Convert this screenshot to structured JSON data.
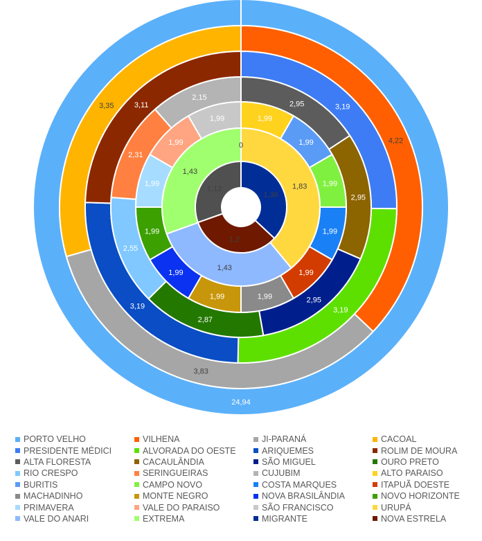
{
  "chart_data": {
    "type": "doughnut",
    "title": "",
    "rings": [
      {
        "segments": [
          {
            "name": "PORTO VELHO",
            "value": 24.94,
            "label": "24,94",
            "color": "#5BB0FA",
            "label_color": "#ffffff"
          }
        ]
      },
      {
        "segments": [
          {
            "name": "VILHENA",
            "value": 4.22,
            "label": "4,22",
            "color": "#FF5F00",
            "label_color": "#404040"
          },
          {
            "name": "JI-PARANÁ",
            "value": 3.83,
            "label": "3,83",
            "color": "#A6A6A6",
            "label_color": "#404040"
          },
          {
            "name": "CACOAL",
            "value": 3.35,
            "label": "3,35",
            "color": "#FFB400",
            "label_color": "#404040"
          }
        ]
      },
      {
        "segments": [
          {
            "name": "PRESIDENTE MÉDICI",
            "value": 3.19,
            "label": "3,19",
            "color": "#3D7CF5",
            "label_color": "#ffffff"
          },
          {
            "name": "ALVORADA DO OESTE",
            "value": 3.19,
            "label": "3,19",
            "color": "#5DE000",
            "label_color": "#ffffff"
          },
          {
            "name": "ARIQUEMES",
            "value": 3.19,
            "label": "3,19",
            "color": "#0A4DC4",
            "label_color": "#ffffff"
          },
          {
            "name": "ROLIM DE MOURA",
            "value": 3.11,
            "label": "3,11",
            "color": "#8C2800",
            "label_color": "#ffffff"
          }
        ]
      },
      {
        "segments": [
          {
            "name": "ALTA FLORESTA",
            "value": 2.95,
            "label": "2,95",
            "color": "#5C5C5C",
            "label_color": "#ffffff"
          },
          {
            "name": "CACAULÂNDIA",
            "value": 2.95,
            "label": "2,95",
            "color": "#8C6400",
            "label_color": "#ffffff"
          },
          {
            "name": "SÃO MIGUEL",
            "value": 2.95,
            "label": "2,95",
            "color": "#001F8C",
            "label_color": "#ffffff"
          },
          {
            "name": "OURO PRETO",
            "value": 2.87,
            "label": "2,87",
            "color": "#237800",
            "label_color": "#ffffff"
          },
          {
            "name": "RIO CRESPO",
            "value": 2.55,
            "label": "2,55",
            "color": "#80C8FF",
            "label_color": "#ffffff"
          },
          {
            "name": "SERINGUEIRAS",
            "value": 2.31,
            "label": "2,31",
            "color": "#FF8040",
            "label_color": "#ffffff"
          },
          {
            "name": "CUJUBIM",
            "value": 2.15,
            "label": "2,15",
            "color": "#B4B4B4",
            "label_color": "#ffffff"
          }
        ]
      },
      {
        "segments": [
          {
            "name": "ALTO PARAISO",
            "value": 1.99,
            "label": "1,99",
            "color": "#FFD21E",
            "label_color": "#ffffff"
          },
          {
            "name": "BURITIS",
            "value": 1.99,
            "label": "1,99",
            "color": "#5A9CF5",
            "label_color": "#ffffff"
          },
          {
            "name": "CAMPO NOVO",
            "value": 1.99,
            "label": "1,99",
            "color": "#80F040",
            "label_color": "#ffffff"
          },
          {
            "name": "COSTA MARQUES",
            "value": 1.99,
            "label": "1,99",
            "color": "#1A80F5",
            "label_color": "#ffffff"
          },
          {
            "name": "ITAPUÃ DOESTE",
            "value": 1.99,
            "label": "1,99",
            "color": "#D23C00",
            "label_color": "#ffffff"
          },
          {
            "name": "MACHADINHO",
            "value": 1.99,
            "label": "1,99",
            "color": "#8A8A8A",
            "label_color": "#ffffff"
          },
          {
            "name": "MONTE NEGRO",
            "value": 1.99,
            "label": "1,99",
            "color": "#C8960A",
            "label_color": "#ffffff"
          },
          {
            "name": "NOVA BRASILÂNDIA",
            "value": 1.99,
            "label": "1,99",
            "color": "#0A32F0",
            "label_color": "#ffffff"
          },
          {
            "name": "NOVO HORIZONTE",
            "value": 1.99,
            "label": "1,99",
            "color": "#3CA000",
            "label_color": "#ffffff"
          },
          {
            "name": "PRIMAVERA",
            "value": 1.99,
            "label": "1,99",
            "color": "#A6DCFF",
            "label_color": "#ffffff"
          },
          {
            "name": "VALE DO PARAISO",
            "value": 1.99,
            "label": "1,99",
            "color": "#FFA582",
            "label_color": "#ffffff"
          },
          {
            "name": "SÃO FRANCISCO",
            "value": 1.99,
            "label": "1,99",
            "color": "#C8C8C8",
            "label_color": "#ffffff"
          },
          {
            "name": "URUPÁ",
            "value": 0,
            "label": "",
            "color": "#FFE640",
            "label_color": "#ffffff"
          }
        ]
      },
      {
        "segments": [
          {
            "name": "",
            "value": 0,
            "label": "0",
            "color": "#FFFFFF",
            "label_color": "#404040"
          },
          {
            "name": "URUPÁ",
            "value": 1.83,
            "label": "1,83",
            "color": "#FFD840",
            "label_color": "#404040"
          },
          {
            "name": "VALE DO ANARI",
            "value": 1.43,
            "label": "1,43",
            "color": "#8FB9FF",
            "label_color": "#404040"
          },
          {
            "name": "EXTREMA",
            "value": 1.43,
            "label": "1,43",
            "color": "#A0FF6E",
            "label_color": "#404040"
          }
        ]
      },
      {
        "segments": [
          {
            "name": "MIGRANTE",
            "value": 1.36,
            "label": "1,36",
            "color": "#002D96",
            "label_color": "#404040"
          },
          {
            "name": "NOVA ESTRELA",
            "value": 1.2,
            "label": "1,2",
            "color": "#6E1900",
            "label_color": "#404040"
          },
          {
            "name": "",
            "value": 1.12,
            "label": "1,12",
            "color": "#505050",
            "label_color": "#404040"
          }
        ]
      }
    ],
    "legend": [
      {
        "name": "PORTO VELHO",
        "color": "#5BB0FA"
      },
      {
        "name": "VILHENA",
        "color": "#FF5F00"
      },
      {
        "name": "JI-PARANÁ",
        "color": "#A6A6A6"
      },
      {
        "name": "CACOAL",
        "color": "#FFB400"
      },
      {
        "name": "PRESIDENTE MÉDICI",
        "color": "#3D7CF5"
      },
      {
        "name": "ALVORADA DO OESTE",
        "color": "#5DE000"
      },
      {
        "name": "ARIQUEMES",
        "color": "#0A4DC4"
      },
      {
        "name": "ROLIM DE MOURA",
        "color": "#8C2800"
      },
      {
        "name": "ALTA FLORESTA",
        "color": "#5C5C5C"
      },
      {
        "name": "CACAULÂNDIA",
        "color": "#8C6400"
      },
      {
        "name": "SÃO MIGUEL",
        "color": "#001F8C"
      },
      {
        "name": "OURO PRETO",
        "color": "#237800"
      },
      {
        "name": "RIO CRESPO",
        "color": "#80C8FF"
      },
      {
        "name": "SERINGUEIRAS",
        "color": "#FF8040"
      },
      {
        "name": "CUJUBIM",
        "color": "#B4B4B4"
      },
      {
        "name": "ALTO PARAISO",
        "color": "#FFD21E"
      },
      {
        "name": "BURITIS",
        "color": "#5A9CF5"
      },
      {
        "name": "CAMPO NOVO",
        "color": "#80F040"
      },
      {
        "name": "COSTA MARQUES",
        "color": "#1A80F5"
      },
      {
        "name": "ITAPUÃ DOESTE",
        "color": "#D23C00"
      },
      {
        "name": "MACHADINHO",
        "color": "#8A8A8A"
      },
      {
        "name": "MONTE NEGRO",
        "color": "#C8960A"
      },
      {
        "name": "NOVA BRASILÂNDIA",
        "color": "#0A32F0"
      },
      {
        "name": "NOVO HORIZONTE",
        "color": "#3CA000"
      },
      {
        "name": "PRIMAVERA",
        "color": "#A6DCFF"
      },
      {
        "name": "VALE DO PARAISO",
        "color": "#FFA582"
      },
      {
        "name": "SÃO FRANCISCO",
        "color": "#C8C8C8"
      },
      {
        "name": "URUPÁ",
        "color": "#FFD840"
      },
      {
        "name": "VALE DO ANARI",
        "color": "#8FB9FF"
      },
      {
        "name": "EXTREMA",
        "color": "#A0FF6E"
      },
      {
        "name": "MIGRANTE",
        "color": "#002D96"
      },
      {
        "name": "NOVA ESTRELA",
        "color": "#6E1900"
      }
    ],
    "legend_position": "bottom",
    "grid": false
  }
}
